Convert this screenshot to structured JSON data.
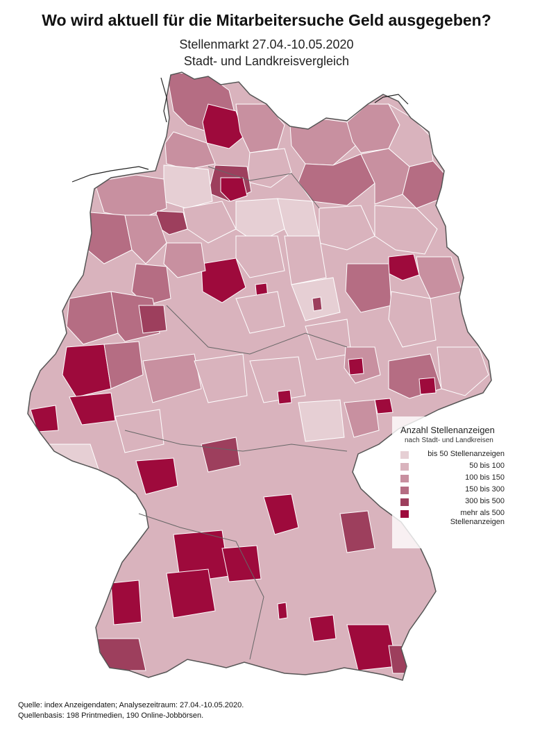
{
  "title": "Wo wird aktuell für die Mitarbeitersuche Geld ausgegeben?",
  "subtitle_1": "Stellenmarkt 27.04.-10.05.2020",
  "subtitle_2": "Stadt- und Landkreisvergleich",
  "legend": {
    "title": "Anzahl Stellenanzeigen",
    "subtitle": "nach Stadt- und Landkreisen",
    "classes": [
      {
        "label": "bis 50 Stellenanzeigen",
        "label2": "",
        "color": "#e6cfd4"
      },
      {
        "label": "50 bis 100",
        "label2": "",
        "color": "#d9b3bd"
      },
      {
        "label": "100 bis 150",
        "label2": "",
        "color": "#c890a0"
      },
      {
        "label": "150 bis 300",
        "label2": "",
        "color": "#b56d83"
      },
      {
        "label": "300 bis 500",
        "label2": "",
        "color": "#9d3f5d"
      },
      {
        "label": "mehr als 500",
        "label2": "Stellenanzeigen",
        "color": "#9e0a3c"
      }
    ]
  },
  "source_1": "Quelle: index Anzeigendaten; Analysezeitraum: 27.04.-10.05.2020.",
  "source_2": "Quellenbasis: 198 Printmedien, 190 Online-Jobbörsen.",
  "map": {
    "region": "Deutschland",
    "district_border_color": "#ffffff",
    "state_border_color": "#555555"
  }
}
